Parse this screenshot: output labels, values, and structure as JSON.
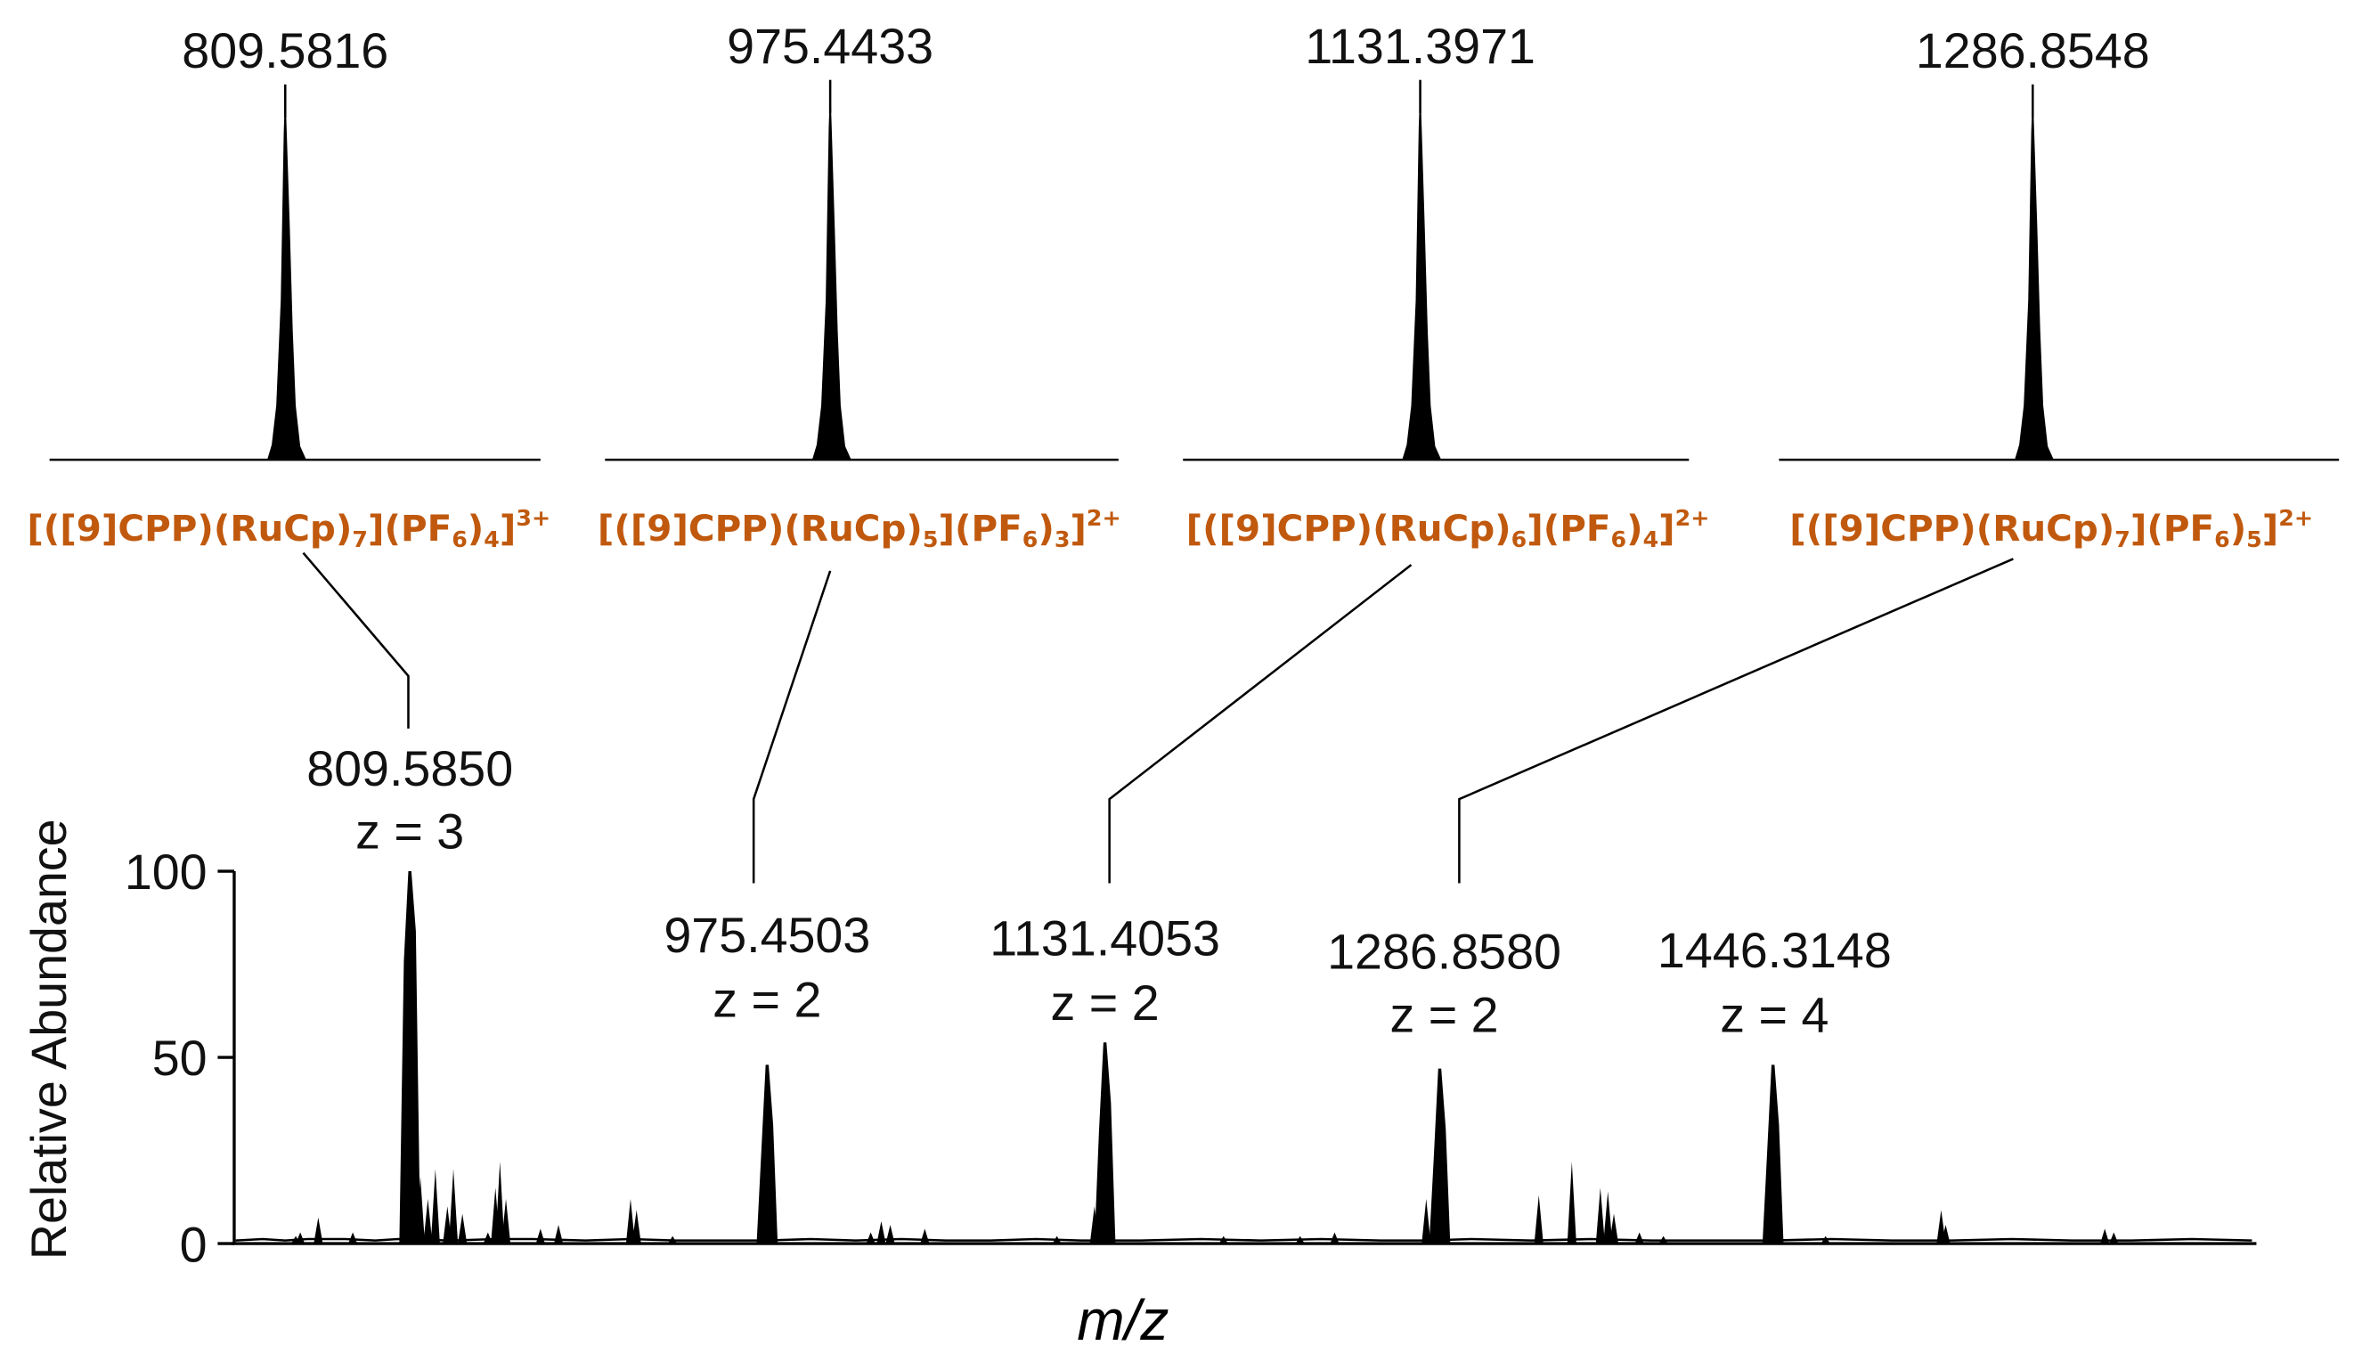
{
  "chart_data": {
    "type": "mass-spectrum",
    "colors": {
      "stroke": "#000000",
      "formula": "#C0590E"
    },
    "axes": {
      "ylabel": "Relative Abundance",
      "xlabel": "m/z",
      "ylim": [
        0,
        100
      ],
      "yticks": [
        "0",
        "50",
        "100"
      ],
      "grid": false
    },
    "main_peaks": [
      {
        "mz": "809.5850",
        "z": "z = 3",
        "value": 100
      },
      {
        "mz": "975.4503",
        "z": "z = 2",
        "value": 48
      },
      {
        "mz": "1131.4053",
        "z": "z = 2",
        "value": 54
      },
      {
        "mz": "1286.8580",
        "z": "z = 2",
        "value": 47
      },
      {
        "mz": "1446.3148",
        "z": "z = 4",
        "value": 48
      }
    ],
    "minor_peaks": [
      {
        "x": 197,
        "value": 2
      },
      {
        "x": 200,
        "value": 3
      },
      {
        "x": 212,
        "value": 7
      },
      {
        "x": 235,
        "value": 3
      },
      {
        "x": 276,
        "value": 40
      },
      {
        "x": 280,
        "value": 18
      },
      {
        "x": 285,
        "value": 12
      },
      {
        "x": 290,
        "value": 20
      },
      {
        "x": 298,
        "value": 10
      },
      {
        "x": 302,
        "value": 20
      },
      {
        "x": 308,
        "value": 8
      },
      {
        "x": 325,
        "value": 3
      },
      {
        "x": 330,
        "value": 15
      },
      {
        "x": 333,
        "value": 22
      },
      {
        "x": 337,
        "value": 12
      },
      {
        "x": 360,
        "value": 4
      },
      {
        "x": 372,
        "value": 5
      },
      {
        "x": 420,
        "value": 12
      },
      {
        "x": 424,
        "value": 9
      },
      {
        "x": 448,
        "value": 2
      },
      {
        "x": 580,
        "value": 3
      },
      {
        "x": 587,
        "value": 6
      },
      {
        "x": 593,
        "value": 5
      },
      {
        "x": 616,
        "value": 4
      },
      {
        "x": 704,
        "value": 2
      },
      {
        "x": 729,
        "value": 10
      },
      {
        "x": 815,
        "value": 2
      },
      {
        "x": 866,
        "value": 2
      },
      {
        "x": 889,
        "value": 3
      },
      {
        "x": 950,
        "value": 12
      },
      {
        "x": 1025,
        "value": 13
      },
      {
        "x": 1047,
        "value": 22
      },
      {
        "x": 1066,
        "value": 15
      },
      {
        "x": 1071,
        "value": 14
      },
      {
        "x": 1075,
        "value": 8
      },
      {
        "x": 1092,
        "value": 3
      },
      {
        "x": 1108,
        "value": 2
      },
      {
        "x": 1216,
        "value": 2
      },
      {
        "x": 1293,
        "value": 9
      },
      {
        "x": 1296,
        "value": 5
      },
      {
        "x": 1402,
        "value": 4
      },
      {
        "x": 1408,
        "value": 3
      }
    ],
    "insets": [
      {
        "mz": "809.5816",
        "formula": [
          "[(",
          "[9]CPP",
          ")(",
          "RuCp",
          ")",
          "7",
          "](",
          "PF",
          "6",
          ")",
          "4",
          "]",
          "3+"
        ]
      },
      {
        "mz": "975.4433",
        "formula": [
          "[(",
          "[9]CPP",
          ")(",
          "RuCp",
          ")",
          "5",
          "](",
          "PF",
          "6",
          ")",
          "3",
          "]",
          "2+"
        ]
      },
      {
        "mz": "1131.3971",
        "formula": [
          "[(",
          "[9]CPP",
          ")(",
          "RuCp",
          ")",
          "6",
          "](",
          "PF",
          "6",
          ")",
          "4",
          "]",
          "2+"
        ]
      },
      {
        "mz": "1286.8548",
        "formula": [
          "[(",
          "[9]CPP",
          ")(",
          "RuCp",
          ")",
          "7",
          "](",
          "PF",
          "6",
          ")",
          "5",
          "]",
          "2+"
        ]
      }
    ]
  }
}
